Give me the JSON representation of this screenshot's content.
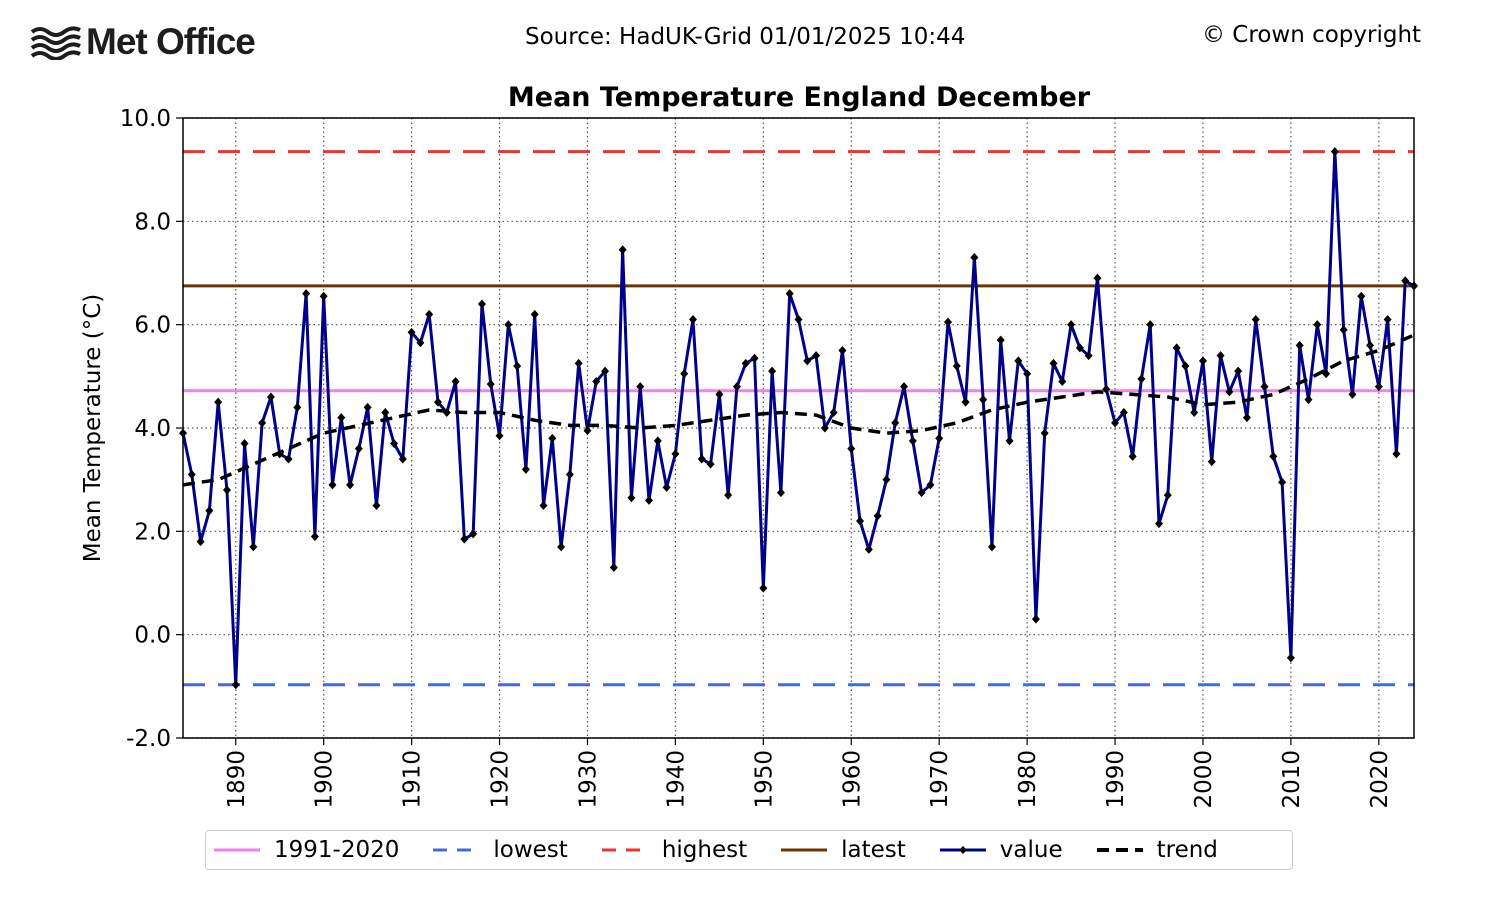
{
  "header": {
    "logo_text": "Met Office",
    "source": "Source: HadUK-Grid 01/01/2025 10:44",
    "copyright": "© Crown copyright"
  },
  "chart_data": {
    "type": "line",
    "title": "Mean Temperature England December",
    "ylabel": "Mean Temperature (°C)",
    "xlabel": "",
    "xlim": [
      1884,
      2024
    ],
    "ylim": [
      -2.0,
      10.0
    ],
    "yticks": [
      "-2.0",
      "0.0",
      "2.0",
      "4.0",
      "6.0",
      "8.0",
      "10.0"
    ],
    "xticks": [
      "1890",
      "1900",
      "1910",
      "1920",
      "1930",
      "1940",
      "1950",
      "1960",
      "1970",
      "1980",
      "1990",
      "2000",
      "2010",
      "2020"
    ],
    "grid": true,
    "legend_position": "bottom",
    "reference_lines": [
      {
        "name": "1991-2020",
        "value": 4.72,
        "color": "#ee82ee",
        "style": "solid"
      },
      {
        "name": "lowest",
        "value": -0.97,
        "color": "#4169e1",
        "style": "dashed"
      },
      {
        "name": "highest",
        "value": 9.35,
        "color": "#ee3333",
        "style": "dashed"
      },
      {
        "name": "latest",
        "value": 6.75,
        "color": "#6b3300",
        "style": "solid"
      }
    ],
    "series": [
      {
        "name": "value",
        "color": "#00008b",
        "x": [
          1884,
          1885,
          1886,
          1887,
          1888,
          1889,
          1890,
          1891,
          1892,
          1893,
          1894,
          1895,
          1896,
          1897,
          1898,
          1899,
          1900,
          1901,
          1902,
          1903,
          1904,
          1905,
          1906,
          1907,
          1908,
          1909,
          1910,
          1911,
          1912,
          1913,
          1914,
          1915,
          1916,
          1917,
          1918,
          1919,
          1920,
          1921,
          1922,
          1923,
          1924,
          1925,
          1926,
          1927,
          1928,
          1929,
          1930,
          1931,
          1932,
          1933,
          1934,
          1935,
          1936,
          1937,
          1938,
          1939,
          1940,
          1941,
          1942,
          1943,
          1944,
          1945,
          1946,
          1947,
          1948,
          1949,
          1950,
          1951,
          1952,
          1953,
          1954,
          1955,
          1956,
          1957,
          1958,
          1959,
          1960,
          1961,
          1962,
          1963,
          1964,
          1965,
          1966,
          1967,
          1968,
          1969,
          1970,
          1971,
          1972,
          1973,
          1974,
          1975,
          1976,
          1977,
          1978,
          1979,
          1980,
          1981,
          1982,
          1983,
          1984,
          1985,
          1986,
          1987,
          1988,
          1989,
          1990,
          1991,
          1992,
          1993,
          1994,
          1995,
          1996,
          1997,
          1998,
          1999,
          2000,
          2001,
          2002,
          2003,
          2004,
          2005,
          2006,
          2007,
          2008,
          2009,
          2010,
          2011,
          2012,
          2013,
          2014,
          2015,
          2016,
          2017,
          2018,
          2019,
          2020,
          2021,
          2022,
          2023,
          2024
        ],
        "y": [
          3.9,
          3.1,
          1.8,
          2.4,
          4.5,
          2.8,
          -0.97,
          3.7,
          1.7,
          4.1,
          4.6,
          3.5,
          3.4,
          4.4,
          6.6,
          1.9,
          6.55,
          2.9,
          4.2,
          2.9,
          3.6,
          4.4,
          2.5,
          4.3,
          3.7,
          3.4,
          5.85,
          5.65,
          6.2,
          4.5,
          4.3,
          4.9,
          1.85,
          1.95,
          6.4,
          4.85,
          3.85,
          6.0,
          5.2,
          3.2,
          6.2,
          2.5,
          3.8,
          1.7,
          3.1,
          5.25,
          3.95,
          4.9,
          5.1,
          1.3,
          7.45,
          2.65,
          4.8,
          2.6,
          3.75,
          2.85,
          3.5,
          5.05,
          6.1,
          3.4,
          3.3,
          4.65,
          2.7,
          4.8,
          5.25,
          5.35,
          0.9,
          5.1,
          2.75,
          6.6,
          6.1,
          5.3,
          5.4,
          4.0,
          4.3,
          5.5,
          3.6,
          2.2,
          1.65,
          2.3,
          3.0,
          4.1,
          4.8,
          3.75,
          2.75,
          2.9,
          3.8,
          6.05,
          5.2,
          4.5,
          7.3,
          4.55,
          1.7,
          5.7,
          3.75,
          5.3,
          5.05,
          0.3,
          3.9,
          5.25,
          4.9,
          6.0,
          5.55,
          5.4,
          6.9,
          4.75,
          4.1,
          4.3,
          3.45,
          4.95,
          6.0,
          2.15,
          2.7,
          5.55,
          5.2,
          4.3,
          5.3,
          3.35,
          5.4,
          4.7,
          5.1,
          4.2,
          6.1,
          4.8,
          3.45,
          2.95,
          -0.45,
          5.6,
          4.55,
          6.0,
          5.05,
          9.35,
          5.9,
          4.65,
          6.55,
          5.6,
          4.8,
          6.1,
          3.5,
          6.85,
          6.75
        ]
      },
      {
        "name": "trend",
        "color": "#000000",
        "x": [
          1884,
          1888,
          1892,
          1896,
          1900,
          1904,
          1908,
          1912,
          1916,
          1920,
          1924,
          1928,
          1932,
          1936,
          1940,
          1944,
          1948,
          1952,
          1956,
          1960,
          1964,
          1968,
          1972,
          1976,
          1980,
          1984,
          1988,
          1992,
          1996,
          2000,
          2004,
          2008,
          2012,
          2016,
          2020,
          2024
        ],
        "y": [
          2.9,
          3.0,
          3.3,
          3.6,
          3.9,
          4.05,
          4.2,
          4.35,
          4.3,
          4.3,
          4.15,
          4.05,
          4.05,
          4.0,
          4.05,
          4.15,
          4.25,
          4.3,
          4.25,
          4.0,
          3.9,
          3.95,
          4.1,
          4.35,
          4.5,
          4.6,
          4.7,
          4.65,
          4.6,
          4.45,
          4.5,
          4.65,
          4.95,
          5.3,
          5.5,
          5.8
        ]
      }
    ]
  },
  "legend": {
    "items": [
      {
        "label": "1991-2020",
        "key": "avg"
      },
      {
        "label": "lowest",
        "key": "low"
      },
      {
        "label": "highest",
        "key": "high"
      },
      {
        "label": "latest",
        "key": "latest"
      },
      {
        "label": "value",
        "key": "value"
      },
      {
        "label": "trend",
        "key": "trend"
      }
    ]
  }
}
